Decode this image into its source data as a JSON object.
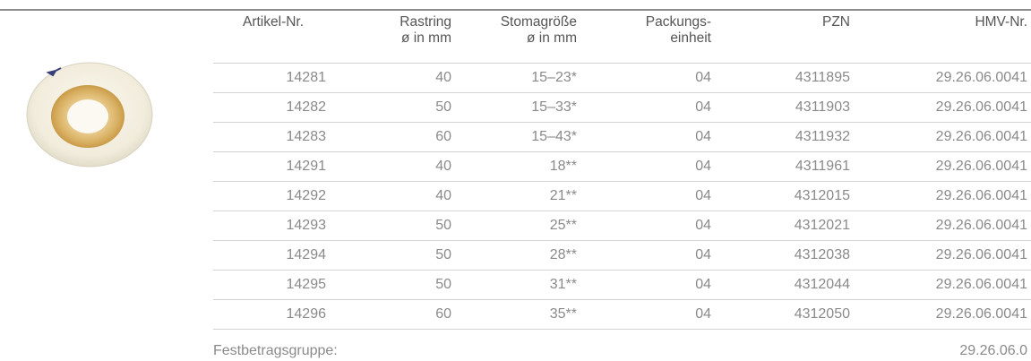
{
  "table": {
    "headers": {
      "artikel": "Artikel-Nr.",
      "rastring_1": "Rastring",
      "rastring_2": "ø in mm",
      "stoma_1": "Stomagröße",
      "stoma_2": "ø in mm",
      "pack_1": "Packungs-",
      "pack_2": "einheit",
      "pzn": "PZN",
      "hmv": "HMV-Nr."
    },
    "rows": [
      {
        "artikel": "14281",
        "rastring": "40",
        "stoma": "15–23*",
        "pack": "04",
        "pzn": "4311895",
        "hmv": "29.26.06.0041"
      },
      {
        "artikel": "14282",
        "rastring": "50",
        "stoma": "15–33*",
        "pack": "04",
        "pzn": "4311903",
        "hmv": "29.26.06.0041"
      },
      {
        "artikel": "14283",
        "rastring": "60",
        "stoma": "15–43*",
        "pack": "04",
        "pzn": "4311932",
        "hmv": "29.26.06.0041"
      },
      {
        "artikel": "14291",
        "rastring": "40",
        "stoma": "18**",
        "pack": "04",
        "pzn": "4311961",
        "hmv": "29.26.06.0041"
      },
      {
        "artikel": "14292",
        "rastring": "40",
        "stoma": "21**",
        "pack": "04",
        "pzn": "4312015",
        "hmv": "29.26.06.0041"
      },
      {
        "artikel": "14293",
        "rastring": "50",
        "stoma": "25**",
        "pack": "04",
        "pzn": "4312021",
        "hmv": "29.26.06.0041"
      },
      {
        "artikel": "14294",
        "rastring": "50",
        "stoma": "28**",
        "pack": "04",
        "pzn": "4312038",
        "hmv": "29.26.06.0041"
      },
      {
        "artikel": "14295",
        "rastring": "50",
        "stoma": "31**",
        "pack": "04",
        "pzn": "4312044",
        "hmv": "29.26.06.0041"
      },
      {
        "artikel": "14296",
        "rastring": "60",
        "stoma": "35**",
        "pack": "04",
        "pzn": "4312050",
        "hmv": "29.26.06.0041"
      }
    ]
  },
  "footer": {
    "label": "Festbetragsgruppe:",
    "value": "29.26.06.0"
  }
}
